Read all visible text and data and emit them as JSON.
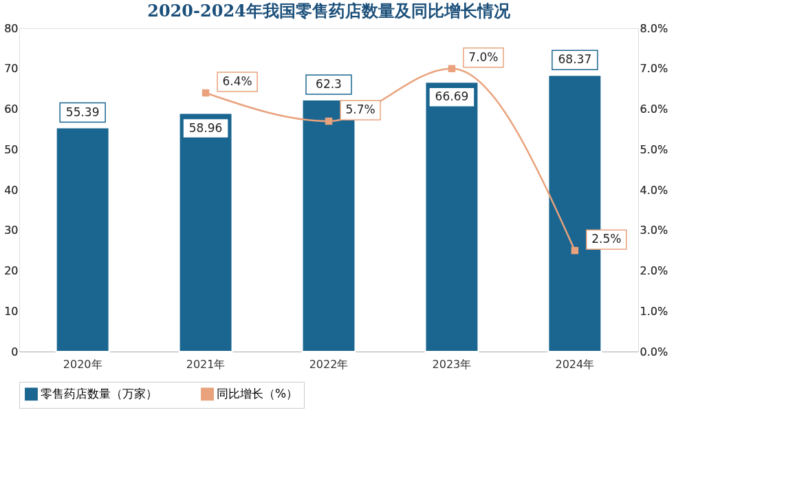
{
  "chart_data": {
    "type": "bar",
    "title": "2020-2024年我国零售药店数量及同比增长情况",
    "categories": [
      "2020年",
      "2021年",
      "2022年",
      "2023年",
      "2024年"
    ],
    "series": [
      {
        "name": "零售药店数量（万家）",
        "color": "#1b6690",
        "values": [
          55.39,
          58.96,
          62.3,
          66.69,
          68.37
        ]
      },
      {
        "name": "同比增长（%）",
        "type": "line",
        "axis": "y2",
        "color": "#e9a27c",
        "marker": "square",
        "values": [
          null,
          6.4,
          5.7,
          7.0,
          2.5
        ],
        "value_labels": [
          null,
          "6.4%",
          "5.7%",
          "7.0%",
          "2.5%"
        ]
      }
    ],
    "data_labels": true,
    "ylim": [
      0,
      80
    ],
    "yticks": [
      0,
      10,
      20,
      30,
      40,
      50,
      60,
      70,
      80
    ],
    "y2lim": [
      0,
      8
    ],
    "y2ticks": [
      {
        "value": 0,
        "label": "0.0%"
      },
      {
        "value": 1,
        "label": "1.0%"
      },
      {
        "value": 2,
        "label": "2.0%"
      },
      {
        "value": 3,
        "label": "3.0%"
      },
      {
        "value": 4,
        "label": "4.0%"
      },
      {
        "value": 5,
        "label": "5.0%"
      },
      {
        "value": 6,
        "label": "6.0%"
      },
      {
        "value": 7,
        "label": "7.0%"
      },
      {
        "value": 8,
        "label": "8.0%"
      }
    ],
    "grid": false,
    "legend": "bottom"
  }
}
